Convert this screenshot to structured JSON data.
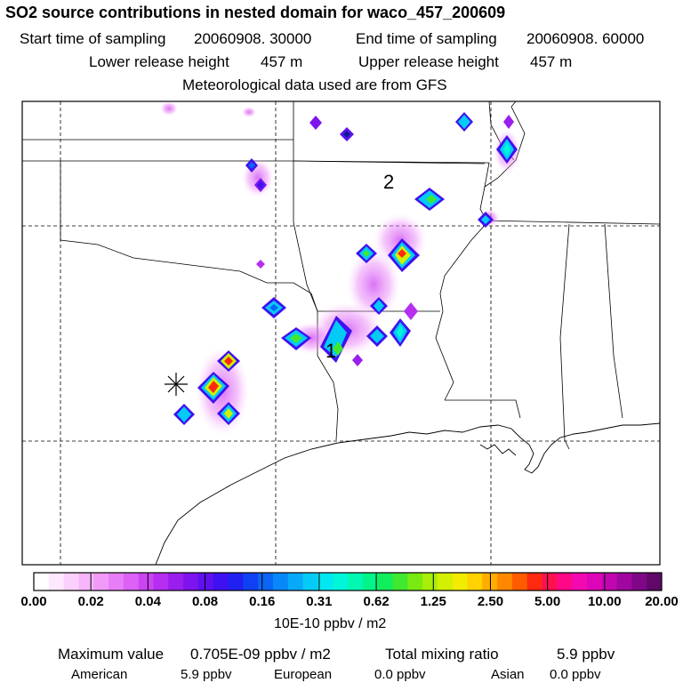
{
  "title": "SO2 source contributions in nested domain for waco_457_200609",
  "sampling": {
    "start_label": "Start time of sampling",
    "start_value": "20060908. 30000",
    "end_label": "End time of sampling",
    "end_value": "20060908. 60000"
  },
  "release": {
    "lower_label": "Lower release height",
    "lower_value": "457 m",
    "upper_label": "Upper release height",
    "upper_value": "457 m"
  },
  "met_note": "Meteorological data used are from GFS",
  "map": {
    "region_labels": [
      "1",
      "2"
    ],
    "source_marker": "asterisk"
  },
  "colorbar": {
    "tick_labels": [
      "0.00",
      "0.02",
      "0.04",
      "0.08",
      "0.16",
      "0.31",
      "0.62",
      "1.25",
      "2.50",
      "5.00",
      "10.00",
      "20.00"
    ],
    "unit": "10E-10 ppbv / m2",
    "colors": [
      "#ffffff",
      "#fde8fe",
      "#fbd0fd",
      "#f7b6fb",
      "#f29af9",
      "#e87ef7",
      "#db62f4",
      "#cc44f2",
      "#b62ef0",
      "#9a1eee",
      "#7d14ee",
      "#5f10ef",
      "#3f10f0",
      "#2020f2",
      "#1040f4",
      "#0a64f6",
      "#0888f8",
      "#06aaf8",
      "#04cbf6",
      "#02e8f0",
      "#00f6d8",
      "#00f8b2",
      "#00f48a",
      "#10ee5c",
      "#40e830",
      "#78ea10",
      "#a8ee08",
      "#d2f000",
      "#f2ec00",
      "#ffd200",
      "#ffae00",
      "#ff8800",
      "#ff5c00",
      "#ff2a10",
      "#ff1050",
      "#ff0888",
      "#f408b0",
      "#dc06b8",
      "#c006b0",
      "#a006a0",
      "#800688",
      "#600868"
    ]
  },
  "footer": {
    "max_label": "Maximum value",
    "max_value": "0.705E-09 ppbv / m2",
    "total_label": "Total mixing ratio",
    "total_value": "5.9 ppbv",
    "american_label": "American",
    "american_value": "5.9 ppbv",
    "european_label": "European",
    "european_value": "0.0 ppbv",
    "asian_label": "Asian",
    "asian_value": "0.0 ppbv"
  }
}
